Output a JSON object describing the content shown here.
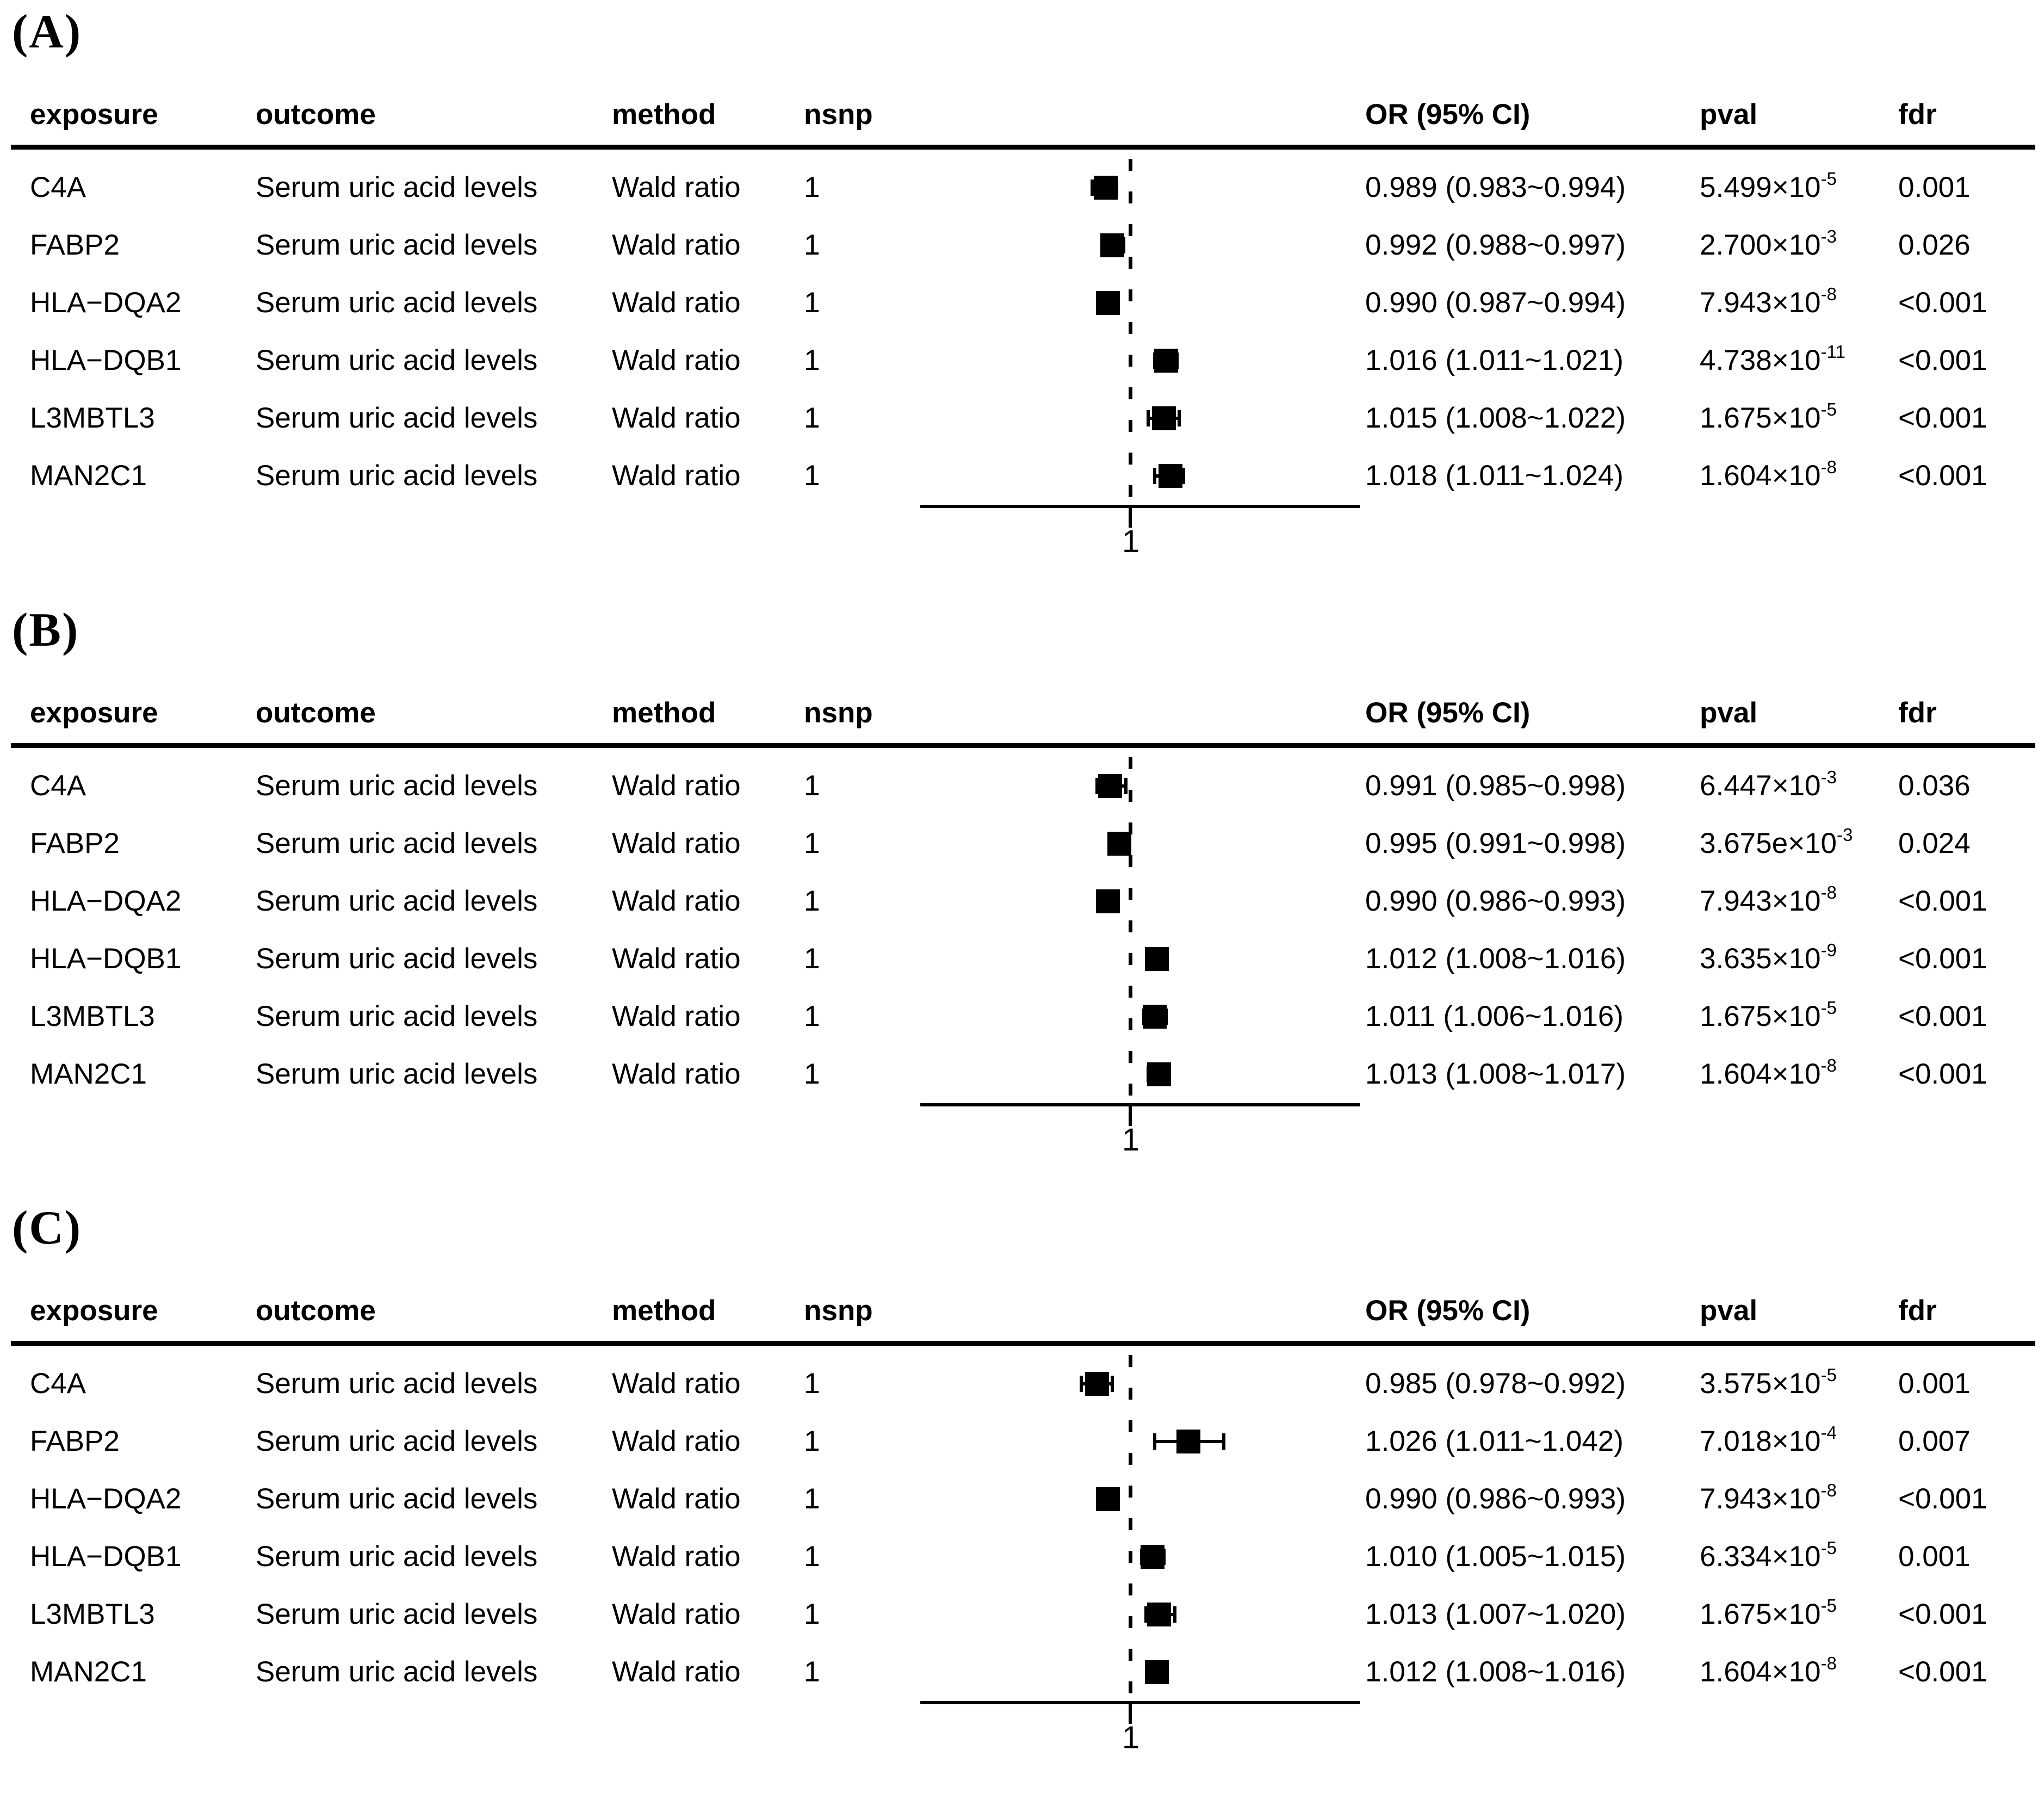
{
  "figure": {
    "background": "#ffffff",
    "text_color": "#000000",
    "marker_color": "#000000"
  },
  "columns": {
    "exposure": "exposure",
    "outcome": "outcome",
    "method": "method",
    "nsnp": "nsnp",
    "or_ci": "OR (95% CI)",
    "pval": "pval",
    "fdr": "fdr"
  },
  "axis": {
    "tick_label": "1",
    "ref_line_value": 1
  },
  "chart_data": [
    {
      "type": "forest",
      "panel_label": "(A)",
      "x_ref": 1,
      "rows": [
        {
          "exposure": "C4A",
          "outcome": "Serum uric acid levels",
          "method": "Wald ratio",
          "nsnp": "1",
          "or": 0.989,
          "ci_lo": 0.983,
          "ci_hi": 0.994,
          "or_text": "0.989 (0.983~0.994)",
          "pval_mantissa": "5.499",
          "pval_exp": "-5",
          "fdr": "0.001"
        },
        {
          "exposure": "FABP2",
          "outcome": "Serum uric acid levels",
          "method": "Wald ratio",
          "nsnp": "1",
          "or": 0.992,
          "ci_lo": 0.988,
          "ci_hi": 0.997,
          "or_text": "0.992 (0.988~0.997)",
          "pval_mantissa": "2.700",
          "pval_exp": "-3",
          "fdr": "0.026"
        },
        {
          "exposure": "HLA−DQA2",
          "outcome": "Serum uric acid levels",
          "method": "Wald ratio",
          "nsnp": "1",
          "or": 0.99,
          "ci_lo": 0.987,
          "ci_hi": 0.994,
          "or_text": "0.990 (0.987~0.994)",
          "pval_mantissa": "7.943",
          "pval_exp": "-8",
          "fdr": "<0.001"
        },
        {
          "exposure": "HLA−DQB1",
          "outcome": "Serum uric acid levels",
          "method": "Wald ratio",
          "nsnp": "1",
          "or": 1.016,
          "ci_lo": 1.011,
          "ci_hi": 1.021,
          "or_text": "1.016 (1.011~1.021)",
          "pval_mantissa": "4.738",
          "pval_exp": "-11",
          "fdr": "<0.001"
        },
        {
          "exposure": "L3MBTL3",
          "outcome": "Serum uric acid levels",
          "method": "Wald ratio",
          "nsnp": "1",
          "or": 1.015,
          "ci_lo": 1.008,
          "ci_hi": 1.022,
          "or_text": "1.015 (1.008~1.022)",
          "pval_mantissa": "1.675",
          "pval_exp": "-5",
          "fdr": "<0.001"
        },
        {
          "exposure": "MAN2C1",
          "outcome": "Serum uric acid levels",
          "method": "Wald ratio",
          "nsnp": "1",
          "or": 1.018,
          "ci_lo": 1.011,
          "ci_hi": 1.024,
          "or_text": "1.018 (1.011~1.024)",
          "pval_mantissa": "1.604",
          "pval_exp": "-8",
          "fdr": "<0.001"
        }
      ]
    },
    {
      "type": "forest",
      "panel_label": "(B)",
      "x_ref": 1,
      "rows": [
        {
          "exposure": "C4A",
          "outcome": "Serum uric acid levels",
          "method": "Wald ratio",
          "nsnp": "1",
          "or": 0.991,
          "ci_lo": 0.985,
          "ci_hi": 0.998,
          "or_text": "0.991 (0.985~0.998)",
          "pval_mantissa": "6.447",
          "pval_exp": "-3",
          "fdr": "0.036"
        },
        {
          "exposure": "FABP2",
          "outcome": "Serum uric acid levels",
          "method": "Wald ratio",
          "nsnp": "1",
          "or": 0.995,
          "ci_lo": 0.991,
          "ci_hi": 0.998,
          "or_text": "0.995 (0.991~0.998)",
          "pval_mantissa": "3.675e",
          "pval_exp": "-3",
          "fdr": "0.024"
        },
        {
          "exposure": "HLA−DQA2",
          "outcome": "Serum uric acid levels",
          "method": "Wald ratio",
          "nsnp": "1",
          "or": 0.99,
          "ci_lo": 0.986,
          "ci_hi": 0.993,
          "or_text": "0.990 (0.986~0.993)",
          "pval_mantissa": "7.943",
          "pval_exp": "-8",
          "fdr": "<0.001"
        },
        {
          "exposure": "HLA−DQB1",
          "outcome": "Serum uric acid levels",
          "method": "Wald ratio",
          "nsnp": "1",
          "or": 1.012,
          "ci_lo": 1.008,
          "ci_hi": 1.016,
          "or_text": "1.012 (1.008~1.016)",
          "pval_mantissa": "3.635",
          "pval_exp": "-9",
          "fdr": "<0.001"
        },
        {
          "exposure": "L3MBTL3",
          "outcome": "Serum uric acid levels",
          "method": "Wald ratio",
          "nsnp": "1",
          "or": 1.011,
          "ci_lo": 1.006,
          "ci_hi": 1.016,
          "or_text": "1.011 (1.006~1.016)",
          "pval_mantissa": "1.675",
          "pval_exp": "-5",
          "fdr": "<0.001"
        },
        {
          "exposure": "MAN2C1",
          "outcome": "Serum uric acid levels",
          "method": "Wald ratio",
          "nsnp": "1",
          "or": 1.013,
          "ci_lo": 1.008,
          "ci_hi": 1.017,
          "or_text": "1.013 (1.008~1.017)",
          "pval_mantissa": "1.604",
          "pval_exp": "-8",
          "fdr": "<0.001"
        }
      ]
    },
    {
      "type": "forest",
      "panel_label": "(C)",
      "x_ref": 1,
      "rows": [
        {
          "exposure": "C4A",
          "outcome": "Serum uric acid levels",
          "method": "Wald ratio",
          "nsnp": "1",
          "or": 0.985,
          "ci_lo": 0.978,
          "ci_hi": 0.992,
          "or_text": "0.985 (0.978~0.992)",
          "pval_mantissa": "3.575",
          "pval_exp": "-5",
          "fdr": "0.001"
        },
        {
          "exposure": "FABP2",
          "outcome": "Serum uric acid levels",
          "method": "Wald ratio",
          "nsnp": "1",
          "or": 1.026,
          "ci_lo": 1.011,
          "ci_hi": 1.042,
          "or_text": "1.026 (1.011~1.042)",
          "pval_mantissa": "7.018",
          "pval_exp": "-4",
          "fdr": "0.007"
        },
        {
          "exposure": "HLA−DQA2",
          "outcome": "Serum uric acid levels",
          "method": "Wald ratio",
          "nsnp": "1",
          "or": 0.99,
          "ci_lo": 0.986,
          "ci_hi": 0.993,
          "or_text": "0.990 (0.986~0.993)",
          "pval_mantissa": "7.943",
          "pval_exp": "-8",
          "fdr": "<0.001"
        },
        {
          "exposure": "HLA−DQB1",
          "outcome": "Serum uric acid levels",
          "method": "Wald ratio",
          "nsnp": "1",
          "or": 1.01,
          "ci_lo": 1.005,
          "ci_hi": 1.015,
          "or_text": "1.010 (1.005~1.015)",
          "pval_mantissa": "6.334",
          "pval_exp": "-5",
          "fdr": "0.001"
        },
        {
          "exposure": "L3MBTL3",
          "outcome": "Serum uric acid levels",
          "method": "Wald ratio",
          "nsnp": "1",
          "or": 1.013,
          "ci_lo": 1.007,
          "ci_hi": 1.02,
          "or_text": "1.013 (1.007~1.020)",
          "pval_mantissa": "1.675",
          "pval_exp": "-5",
          "fdr": "<0.001"
        },
        {
          "exposure": "MAN2C1",
          "outcome": "Serum uric acid levels",
          "method": "Wald ratio",
          "nsnp": "1",
          "or": 1.012,
          "ci_lo": 1.008,
          "ci_hi": 1.016,
          "or_text": "1.012 (1.008~1.016)",
          "pval_mantissa": "1.604",
          "pval_exp": "-8",
          "fdr": "<0.001"
        }
      ]
    }
  ],
  "layout_note": "three stacked forest-plot tables, reference line at OR=1"
}
